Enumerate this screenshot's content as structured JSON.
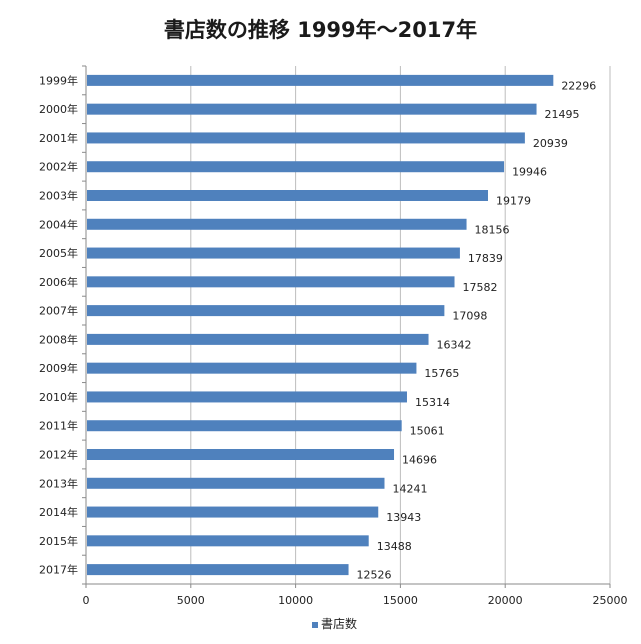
{
  "chart_data": {
    "type": "bar",
    "orientation": "horizontal",
    "title": "書店数の推移  1999年～2017年",
    "categories": [
      "1999年",
      "2000年",
      "2001年",
      "2002年",
      "2003年",
      "2004年",
      "2005年",
      "2006年",
      "2007年",
      "2008年",
      "2009年",
      "2010年",
      "2011年",
      "2012年",
      "2013年",
      "2014年",
      "2015年",
      "2017年"
    ],
    "series": [
      {
        "name": "書店数",
        "color": "#4f81bd",
        "values": [
          22296,
          21495,
          20939,
          19946,
          19179,
          18156,
          17839,
          17582,
          17098,
          16342,
          15765,
          15314,
          15061,
          14696,
          14241,
          13943,
          13488,
          12526
        ]
      }
    ],
    "xlim": [
      0,
      25000
    ],
    "xticks": [
      0,
      5000,
      10000,
      15000,
      20000,
      25000
    ],
    "grid": true,
    "data_labels": true,
    "legend": "bottom"
  }
}
